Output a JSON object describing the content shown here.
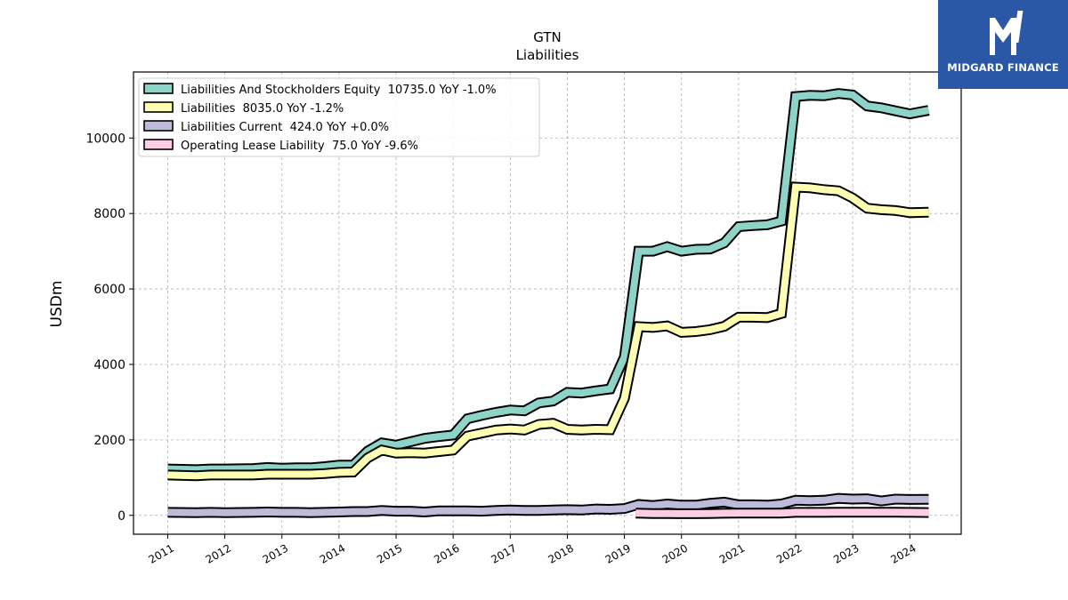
{
  "chart_data": {
    "type": "line",
    "title": "GTN",
    "subtitle": "Liabilities",
    "ylabel": "USDm",
    "xlim": [
      2010.4,
      2024.9
    ],
    "ylim": [
      -500,
      11750
    ],
    "x_ticks": [
      2011,
      2012,
      2013,
      2014,
      2015,
      2016,
      2017,
      2018,
      2019,
      2020,
      2021,
      2022,
      2023,
      2024
    ],
    "x_tick_labels": [
      "2011",
      "2012",
      "2013",
      "2014",
      "2015",
      "2016",
      "2017",
      "2018",
      "2019",
      "2020",
      "2021",
      "2022",
      "2023",
      "2024"
    ],
    "y_ticks": [
      0,
      2000,
      4000,
      6000,
      8000,
      10000
    ],
    "y_tick_labels": [
      "0",
      "2000",
      "4000",
      "6000",
      "8000",
      "10000"
    ],
    "grid": true,
    "legend_position": "top-left",
    "series": [
      {
        "name": "Liabilities And Stockholders Equity  10735.0 YoY -1.0%",
        "color": "#8dd3c7",
        "x": [
          2011.0,
          2011.5,
          2011.75,
          2012.0,
          2012.5,
          2012.75,
          2013.0,
          2013.25,
          2013.5,
          2013.75,
          2014.0,
          2014.25,
          2014.5,
          2014.75,
          2015.0,
          2015.25,
          2015.5,
          2015.75,
          2016.0,
          2016.25,
          2016.5,
          2016.75,
          2017.0,
          2017.25,
          2017.5,
          2017.75,
          2018.0,
          2018.25,
          2018.5,
          2018.75,
          2019.0,
          2019.25,
          2019.5,
          2019.75,
          2020.0,
          2020.25,
          2020.5,
          2020.75,
          2021.0,
          2021.25,
          2021.5,
          2021.75,
          2022.0,
          2022.25,
          2022.5,
          2022.75,
          2023.0,
          2023.25,
          2023.5,
          2023.75,
          2024.0,
          2024.33
        ],
        "y": [
          1230,
          1210,
          1230,
          1230,
          1240,
          1270,
          1250,
          1260,
          1260,
          1290,
          1330,
          1330,
          1700,
          1920,
          1860,
          1950,
          2040,
          2090,
          2130,
          2560,
          2650,
          2730,
          2790,
          2770,
          2980,
          3030,
          3260,
          3240,
          3300,
          3350,
          4200,
          7000,
          7000,
          7120,
          7000,
          7050,
          7060,
          7220,
          7650,
          7680,
          7700,
          7800,
          11100,
          11130,
          11120,
          11180,
          11140,
          10850,
          10800,
          10720,
          10640,
          10735
        ]
      },
      {
        "name": "Liabilities  8035.0 YoY -1.2%",
        "color": "#ffffb3",
        "x": [
          2011.0,
          2011.5,
          2011.75,
          2012.0,
          2012.5,
          2012.75,
          2013.0,
          2013.25,
          2013.5,
          2013.75,
          2014.0,
          2014.25,
          2014.5,
          2014.75,
          2015.0,
          2015.25,
          2015.5,
          2015.75,
          2016.0,
          2016.25,
          2016.5,
          2016.75,
          2017.0,
          2017.25,
          2017.5,
          2017.75,
          2018.0,
          2018.25,
          2018.5,
          2018.75,
          2019.0,
          2019.25,
          2019.5,
          2019.75,
          2020.0,
          2020.25,
          2020.5,
          2020.75,
          2021.0,
          2021.25,
          2021.5,
          2021.75,
          2022.0,
          2022.25,
          2022.5,
          2022.75,
          2023.0,
          2023.25,
          2023.5,
          2023.75,
          2024.0,
          2024.33
        ],
        "y": [
          1070,
          1050,
          1070,
          1070,
          1070,
          1090,
          1090,
          1090,
          1090,
          1110,
          1140,
          1150,
          1520,
          1730,
          1650,
          1660,
          1650,
          1690,
          1730,
          2100,
          2180,
          2260,
          2290,
          2260,
          2410,
          2440,
          2280,
          2260,
          2280,
          2270,
          3100,
          5000,
          4980,
          5020,
          4850,
          4870,
          4920,
          5010,
          5250,
          5250,
          5240,
          5350,
          8700,
          8680,
          8630,
          8600,
          8410,
          8140,
          8100,
          8080,
          8020,
          8035
        ]
      },
      {
        "name": "Liabilities Current  424.0 YoY +0.0%",
        "color": "#bebada",
        "x": [
          2011.0,
          2011.5,
          2011.75,
          2012.0,
          2012.5,
          2012.75,
          2013.0,
          2013.25,
          2013.5,
          2013.75,
          2014.0,
          2014.25,
          2014.5,
          2014.75,
          2015.0,
          2015.25,
          2015.5,
          2015.75,
          2016.0,
          2016.25,
          2016.5,
          2016.75,
          2017.0,
          2017.25,
          2017.5,
          2017.75,
          2018.0,
          2018.25,
          2018.5,
          2018.75,
          2019.0,
          2019.25,
          2019.5,
          2019.75,
          2020.0,
          2020.25,
          2020.5,
          2020.75,
          2021.0,
          2021.25,
          2021.5,
          2021.75,
          2022.0,
          2022.25,
          2022.5,
          2022.75,
          2023.0,
          2023.25,
          2023.5,
          2023.75,
          2024.0,
          2024.33
        ],
        "y": [
          80,
          70,
          80,
          70,
          80,
          90,
          80,
          80,
          70,
          80,
          90,
          100,
          100,
          130,
          110,
          110,
          90,
          120,
          120,
          120,
          110,
          130,
          140,
          130,
          130,
          140,
          150,
          140,
          170,
          160,
          180,
          290,
          260,
          300,
          270,
          270,
          320,
          350,
          280,
          280,
          270,
          300,
          400,
          390,
          400,
          450,
          430,
          440,
          380,
          430,
          420,
          424
        ]
      },
      {
        "name": "Operating Lease Liability  75.0 YoY -9.6%",
        "color": "#fccde5",
        "x": [
          2019.2,
          2019.5,
          2019.75,
          2020.0,
          2020.25,
          2020.5,
          2020.75,
          2021.0,
          2021.25,
          2021.5,
          2021.75,
          2022.0,
          2022.25,
          2022.5,
          2022.75,
          2023.0,
          2023.25,
          2023.5,
          2023.75,
          2024.0,
          2024.33
        ],
        "y": [
          60,
          50,
          50,
          45,
          45,
          50,
          55,
          60,
          60,
          60,
          60,
          80,
          80,
          80,
          85,
          85,
          85,
          85,
          85,
          80,
          75
        ]
      }
    ]
  },
  "logo": {
    "text": "MIDGARD FINANCE",
    "icon": "midgard-logo-icon",
    "background": "#2b57a7"
  }
}
